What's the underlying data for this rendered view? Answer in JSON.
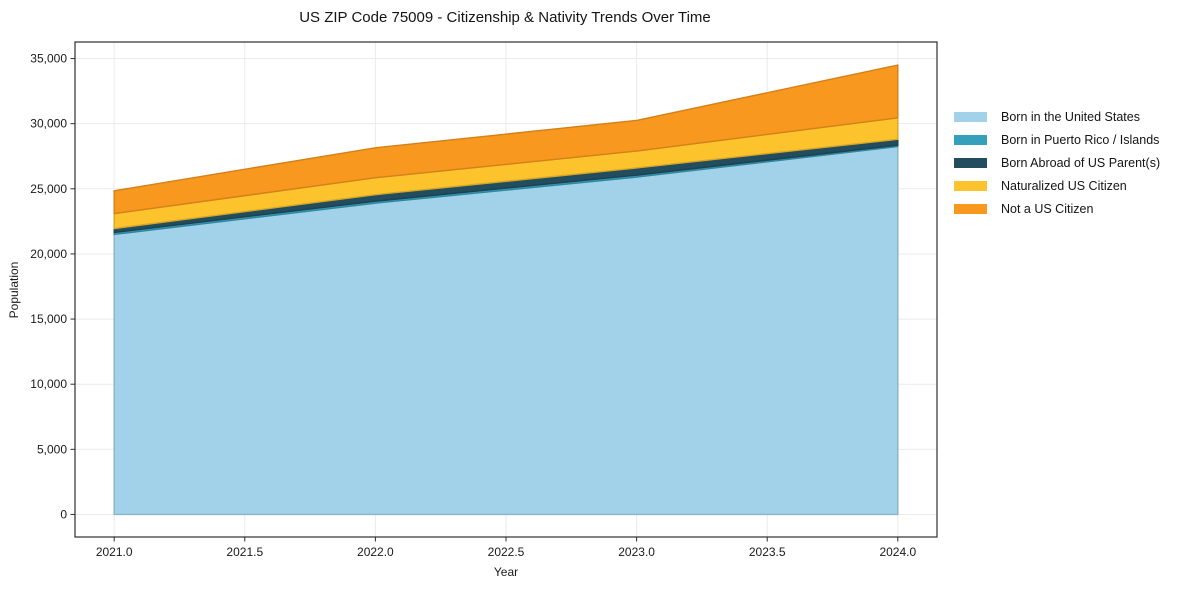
{
  "chart": {
    "title": "US ZIP Code 75009 - Citizenship & Nativity Trends Over Time",
    "xlabel": "Year",
    "ylabel": "Population"
  },
  "chart_data": {
    "type": "area",
    "stacked": true,
    "title": "US ZIP Code 75009 - Citizenship & Nativity Trends Over Time",
    "xlabel": "Year",
    "ylabel": "Population",
    "x": [
      2021,
      2022,
      2023,
      2024
    ],
    "series": [
      {
        "name": "Born in the United States",
        "color": "#a2d2e9",
        "values": [
          21500,
          23900,
          25900,
          28250
        ]
      },
      {
        "name": "Born in Puerto Rico / Islands",
        "color": "#35a0bc",
        "values": [
          150,
          150,
          150,
          100
        ]
      },
      {
        "name": "Born Abroad of US Parent(s)",
        "color": "#224d5e",
        "values": [
          300,
          500,
          550,
          450
        ]
      },
      {
        "name": "Naturalized US Citizen",
        "color": "#fcc32d",
        "values": [
          1150,
          1300,
          1300,
          1650
        ]
      },
      {
        "name": "Not a US Citizen",
        "color": "#f8981e",
        "values": [
          1750,
          2300,
          2350,
          4050
        ]
      }
    ],
    "stacked_totals": [
      24850,
      28150,
      30250,
      34500
    ],
    "xlim": [
      2020.85,
      2024.15
    ],
    "ylim": [
      -1730,
      36270
    ],
    "xticks": [
      2021.0,
      2021.5,
      2022.0,
      2022.5,
      2023.0,
      2023.5,
      2024.0
    ],
    "xtick_labels": [
      "2021.0",
      "2021.5",
      "2022.0",
      "2022.5",
      "2023.0",
      "2023.5",
      "2024.0"
    ],
    "yticks": [
      0,
      5000,
      10000,
      15000,
      20000,
      25000,
      30000,
      35000
    ],
    "ytick_labels": [
      "0",
      "5,000",
      "10,000",
      "15,000",
      "20,000",
      "25,000",
      "30,000",
      "35,000"
    ],
    "grid": true,
    "grid_color": "#ebebeb",
    "spine_color": "#2e2e2e",
    "legend_position": "right"
  }
}
